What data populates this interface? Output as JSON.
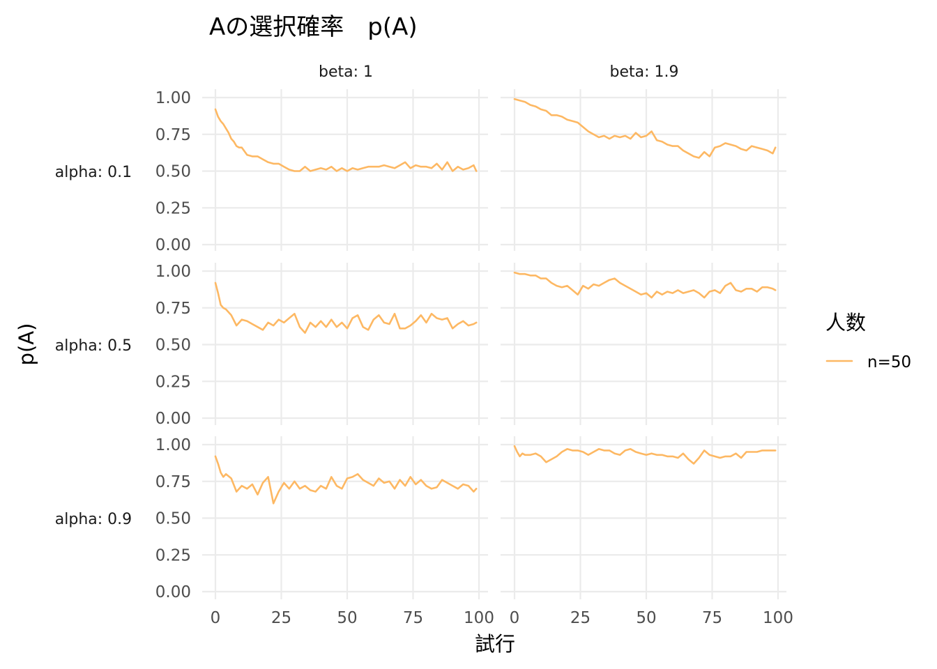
{
  "chart_data": {
    "type": "line",
    "title": "Aの選択確率　p(A)",
    "xlabel": "試行",
    "ylabel": "p(A)",
    "xlim": [
      0,
      100
    ],
    "ylim": [
      0,
      1
    ],
    "x_ticks": [
      "0",
      "25",
      "50",
      "75",
      "100"
    ],
    "y_ticks": [
      "0.00",
      "0.25",
      "0.50",
      "0.75",
      "1.00"
    ],
    "grid": true,
    "legend": {
      "title": "人数",
      "position": "right",
      "entries": [
        {
          "label": "n=50",
          "color": "#fdb863"
        }
      ]
    },
    "facet_cols": [
      "beta: 1",
      "beta: 1.9"
    ],
    "facet_rows": [
      "alpha: 0.1",
      "alpha: 0.5",
      "alpha: 0.9"
    ],
    "panels": [
      {
        "row": "alpha: 0.1",
        "col": "beta: 1",
        "x": [
          0,
          1,
          2,
          3,
          4,
          5,
          6,
          7,
          8,
          9,
          10,
          12,
          14,
          16,
          18,
          20,
          22,
          24,
          26,
          28,
          30,
          32,
          34,
          36,
          38,
          40,
          42,
          44,
          46,
          48,
          50,
          52,
          54,
          56,
          58,
          60,
          62,
          64,
          66,
          68,
          70,
          72,
          74,
          76,
          78,
          80,
          82,
          84,
          86,
          88,
          90,
          92,
          94,
          96,
          98,
          99
        ],
        "y": [
          0.92,
          0.87,
          0.84,
          0.82,
          0.79,
          0.76,
          0.72,
          0.7,
          0.67,
          0.66,
          0.66,
          0.61,
          0.6,
          0.6,
          0.58,
          0.56,
          0.55,
          0.55,
          0.53,
          0.51,
          0.5,
          0.5,
          0.53,
          0.5,
          0.51,
          0.52,
          0.51,
          0.53,
          0.5,
          0.52,
          0.5,
          0.52,
          0.51,
          0.52,
          0.53,
          0.53,
          0.53,
          0.54,
          0.53,
          0.52,
          0.54,
          0.56,
          0.52,
          0.54,
          0.53,
          0.53,
          0.52,
          0.55,
          0.51,
          0.56,
          0.5,
          0.53,
          0.51,
          0.52,
          0.54,
          0.5
        ]
      },
      {
        "row": "alpha: 0.1",
        "col": "beta: 1.9",
        "x": [
          0,
          2,
          4,
          6,
          8,
          10,
          12,
          14,
          16,
          18,
          20,
          22,
          24,
          26,
          28,
          30,
          32,
          34,
          36,
          38,
          40,
          42,
          44,
          46,
          48,
          50,
          52,
          54,
          56,
          58,
          60,
          62,
          64,
          66,
          68,
          70,
          72,
          74,
          76,
          78,
          80,
          82,
          84,
          86,
          88,
          90,
          92,
          94,
          96,
          98,
          99
        ],
        "y": [
          0.99,
          0.98,
          0.97,
          0.95,
          0.94,
          0.92,
          0.91,
          0.88,
          0.88,
          0.87,
          0.85,
          0.84,
          0.83,
          0.8,
          0.77,
          0.75,
          0.73,
          0.74,
          0.72,
          0.74,
          0.73,
          0.74,
          0.72,
          0.76,
          0.73,
          0.74,
          0.77,
          0.71,
          0.7,
          0.68,
          0.67,
          0.67,
          0.64,
          0.62,
          0.6,
          0.59,
          0.63,
          0.6,
          0.66,
          0.67,
          0.69,
          0.68,
          0.67,
          0.65,
          0.64,
          0.67,
          0.66,
          0.65,
          0.64,
          0.62,
          0.66
        ]
      },
      {
        "row": "alpha: 0.5",
        "col": "beta: 1",
        "x": [
          0,
          1,
          2,
          3,
          4,
          6,
          8,
          10,
          12,
          14,
          16,
          18,
          20,
          22,
          24,
          26,
          28,
          30,
          32,
          34,
          36,
          38,
          40,
          42,
          44,
          46,
          48,
          50,
          52,
          54,
          56,
          58,
          60,
          62,
          64,
          66,
          68,
          70,
          72,
          74,
          76,
          78,
          80,
          82,
          84,
          86,
          88,
          90,
          92,
          94,
          96,
          98,
          99
        ],
        "y": [
          0.92,
          0.85,
          0.77,
          0.75,
          0.74,
          0.7,
          0.63,
          0.67,
          0.66,
          0.64,
          0.62,
          0.6,
          0.65,
          0.63,
          0.67,
          0.65,
          0.68,
          0.71,
          0.62,
          0.58,
          0.65,
          0.62,
          0.66,
          0.62,
          0.67,
          0.62,
          0.65,
          0.61,
          0.68,
          0.7,
          0.62,
          0.6,
          0.67,
          0.7,
          0.65,
          0.64,
          0.71,
          0.61,
          0.61,
          0.63,
          0.66,
          0.7,
          0.65,
          0.71,
          0.68,
          0.67,
          0.68,
          0.61,
          0.64,
          0.66,
          0.63,
          0.64,
          0.65
        ]
      },
      {
        "row": "alpha: 0.5",
        "col": "beta: 1.9",
        "x": [
          0,
          2,
          4,
          6,
          8,
          10,
          12,
          14,
          16,
          18,
          20,
          22,
          24,
          26,
          28,
          30,
          32,
          34,
          36,
          38,
          40,
          42,
          44,
          46,
          48,
          50,
          52,
          54,
          56,
          58,
          60,
          62,
          64,
          66,
          68,
          70,
          72,
          74,
          76,
          78,
          80,
          82,
          84,
          86,
          88,
          90,
          92,
          94,
          96,
          98,
          99
        ],
        "y": [
          0.99,
          0.98,
          0.98,
          0.97,
          0.97,
          0.95,
          0.95,
          0.92,
          0.9,
          0.89,
          0.9,
          0.87,
          0.84,
          0.9,
          0.88,
          0.91,
          0.9,
          0.92,
          0.94,
          0.95,
          0.92,
          0.9,
          0.88,
          0.86,
          0.84,
          0.85,
          0.82,
          0.86,
          0.84,
          0.86,
          0.85,
          0.87,
          0.85,
          0.86,
          0.87,
          0.85,
          0.82,
          0.86,
          0.87,
          0.85,
          0.9,
          0.92,
          0.87,
          0.86,
          0.88,
          0.88,
          0.86,
          0.89,
          0.89,
          0.88,
          0.87
        ]
      },
      {
        "row": "alpha: 0.9",
        "col": "beta: 1",
        "x": [
          0,
          1,
          2,
          3,
          4,
          6,
          8,
          10,
          12,
          14,
          16,
          18,
          20,
          22,
          24,
          26,
          28,
          30,
          32,
          34,
          36,
          38,
          40,
          42,
          44,
          46,
          48,
          50,
          52,
          54,
          56,
          58,
          60,
          62,
          64,
          66,
          68,
          70,
          72,
          74,
          76,
          78,
          80,
          82,
          84,
          86,
          88,
          90,
          92,
          94,
          96,
          98,
          99
        ],
        "y": [
          0.92,
          0.87,
          0.81,
          0.78,
          0.8,
          0.77,
          0.68,
          0.72,
          0.7,
          0.73,
          0.66,
          0.74,
          0.78,
          0.6,
          0.68,
          0.74,
          0.7,
          0.75,
          0.7,
          0.72,
          0.69,
          0.68,
          0.72,
          0.7,
          0.78,
          0.72,
          0.7,
          0.77,
          0.78,
          0.8,
          0.76,
          0.74,
          0.72,
          0.77,
          0.74,
          0.75,
          0.7,
          0.76,
          0.72,
          0.78,
          0.73,
          0.76,
          0.72,
          0.7,
          0.71,
          0.76,
          0.74,
          0.72,
          0.7,
          0.73,
          0.72,
          0.68,
          0.7
        ]
      },
      {
        "row": "alpha: 0.9",
        "col": "beta: 1.9",
        "x": [
          0,
          1,
          2,
          3,
          4,
          6,
          8,
          10,
          12,
          14,
          16,
          18,
          20,
          22,
          24,
          26,
          28,
          30,
          32,
          34,
          36,
          38,
          40,
          42,
          44,
          46,
          48,
          50,
          52,
          54,
          56,
          58,
          60,
          62,
          64,
          66,
          68,
          70,
          72,
          74,
          76,
          78,
          80,
          82,
          84,
          86,
          88,
          90,
          92,
          94,
          96,
          98,
          99
        ],
        "y": [
          0.99,
          0.95,
          0.92,
          0.94,
          0.93,
          0.93,
          0.94,
          0.92,
          0.88,
          0.9,
          0.92,
          0.95,
          0.97,
          0.96,
          0.96,
          0.95,
          0.93,
          0.95,
          0.97,
          0.96,
          0.96,
          0.94,
          0.93,
          0.96,
          0.97,
          0.95,
          0.94,
          0.93,
          0.94,
          0.93,
          0.93,
          0.92,
          0.92,
          0.91,
          0.94,
          0.9,
          0.87,
          0.91,
          0.96,
          0.93,
          0.92,
          0.91,
          0.92,
          0.92,
          0.94,
          0.91,
          0.95,
          0.95,
          0.95,
          0.96,
          0.96,
          0.96,
          0.96
        ]
      }
    ]
  }
}
